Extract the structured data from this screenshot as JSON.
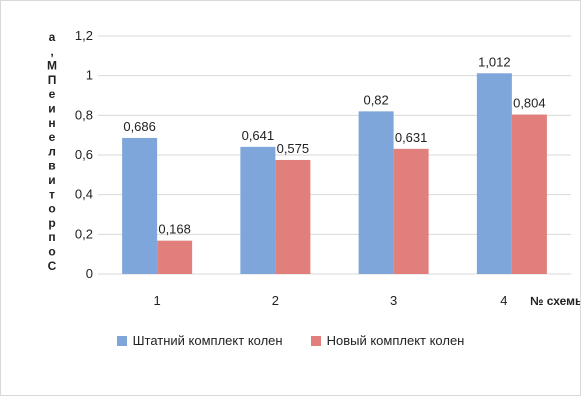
{
  "chart_data": {
    "type": "bar",
    "categories": [
      "1",
      "2",
      "3",
      "4"
    ],
    "series": [
      {
        "name": "Штатний комплект колен",
        "values": [
          0.686,
          0.641,
          0.82,
          1.012
        ],
        "labels": [
          "0,686",
          "0,641",
          "0,82",
          "1,012"
        ],
        "color": "#7EA6DA"
      },
      {
        "name": "Новый комплект колен",
        "values": [
          0.168,
          0.575,
          0.631,
          0.804
        ],
        "labels": [
          "0,168",
          "0,575",
          "0,631",
          "0,804"
        ],
        "color": "#E07F7C"
      }
    ],
    "ylabel": "Сопротивление ПМ,а",
    "xlabel": "№ схемы",
    "ylim": [
      0,
      1.2
    ],
    "yticks": [
      0,
      0.2,
      0.4,
      0.6,
      0.8,
      1.0,
      1.2
    ],
    "ytick_labels": [
      "0",
      "0,2",
      "0,4",
      "0,6",
      "0,8",
      "1",
      "1,2"
    ],
    "grid": true,
    "legend_position": "bottom"
  }
}
